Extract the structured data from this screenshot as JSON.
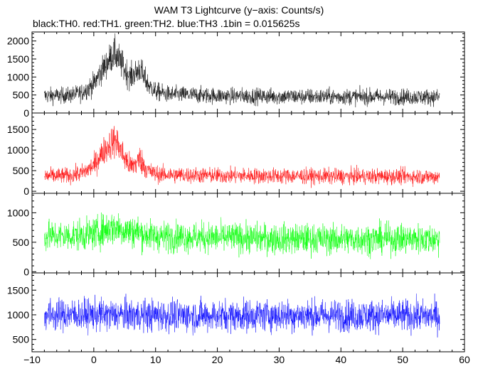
{
  "title": "WAM T3 Lightcurve (y−axis: Counts/s)",
  "subtitle": "black:TH0. red:TH1. green:TH2. blue:TH3 .1bin = 0.015625s",
  "chart_data": {
    "type": "line",
    "title": "WAM T3 Lightcurve (y−axis: Counts/s)",
    "subtitle": "black:TH0. red:TH1. green:TH2. blue:TH3 .1bin = 0.015625s",
    "x_range": [
      -10,
      60
    ],
    "x_ticks": [
      "−10",
      "0",
      "10",
      "20",
      "30",
      "40",
      "50",
      "60"
    ],
    "data_x_range": [
      -8,
      56
    ],
    "bin_s": 0.015625,
    "grid": false,
    "panels": [
      {
        "name": "TH0",
        "color": "#000000",
        "ylim": [
          0,
          2250
        ],
        "y_ticks": [
          0,
          500,
          1000,
          1500,
          2000
        ],
        "x": [
          -8,
          -4,
          -2,
          0,
          1,
          2,
          3,
          3.5,
          4,
          5,
          6,
          7,
          7.5,
          8,
          9,
          10,
          12,
          20,
          30,
          40,
          50,
          56
        ],
        "mean": [
          480,
          490,
          560,
          800,
          1100,
          1350,
          1600,
          1650,
          1500,
          1200,
          1000,
          1150,
          1250,
          1000,
          750,
          600,
          520,
          480,
          460,
          450,
          450,
          440
        ],
        "spread": [
          200,
          200,
          220,
          280,
          320,
          360,
          400,
          420,
          400,
          360,
          320,
          340,
          360,
          320,
          260,
          230,
          210,
          200,
          200,
          200,
          200,
          200
        ]
      },
      {
        "name": "TH1",
        "color": "#ff0000",
        "ylim": [
          -50,
          1900
        ],
        "y_ticks": [
          0,
          500,
          1000,
          1500
        ],
        "x": [
          -8,
          -4,
          -2,
          0,
          1,
          2,
          3,
          3.5,
          4,
          5,
          6,
          7,
          7.5,
          8,
          9,
          10,
          12,
          20,
          30,
          40,
          50,
          56
        ],
        "mean": [
          370,
          380,
          430,
          620,
          850,
          1050,
          1200,
          1250,
          1100,
          800,
          600,
          700,
          800,
          650,
          480,
          420,
          400,
          380,
          370,
          360,
          360,
          350
        ],
        "spread": [
          170,
          170,
          190,
          230,
          280,
          320,
          360,
          380,
          350,
          300,
          260,
          280,
          300,
          260,
          210,
          190,
          180,
          170,
          170,
          170,
          170,
          170
        ]
      },
      {
        "name": "TH2",
        "color": "#00ff00",
        "ylim": [
          -20,
          1330
        ],
        "y_ticks": [
          0,
          500,
          1000
        ],
        "x": [
          -8,
          -4,
          0,
          2,
          3.5,
          5,
          7,
          8,
          10,
          20,
          30,
          40,
          50,
          56
        ],
        "mean": [
          600,
          610,
          640,
          720,
          760,
          700,
          680,
          640,
          600,
          580,
          560,
          550,
          560,
          550
        ],
        "spread": [
          230,
          230,
          240,
          260,
          270,
          250,
          250,
          240,
          230,
          230,
          230,
          230,
          230,
          230
        ]
      },
      {
        "name": "TH3",
        "color": "#0000ff",
        "ylim": [
          250,
          1850
        ],
        "y_ticks": [
          500,
          1000,
          1500
        ],
        "x": [
          -8,
          0,
          10,
          20,
          30,
          40,
          50,
          56
        ],
        "mean": [
          1000,
          1000,
          990,
          980,
          990,
          985,
          980,
          975
        ],
        "spread": [
          290,
          290,
          290,
          290,
          290,
          290,
          290,
          290
        ]
      }
    ]
  }
}
